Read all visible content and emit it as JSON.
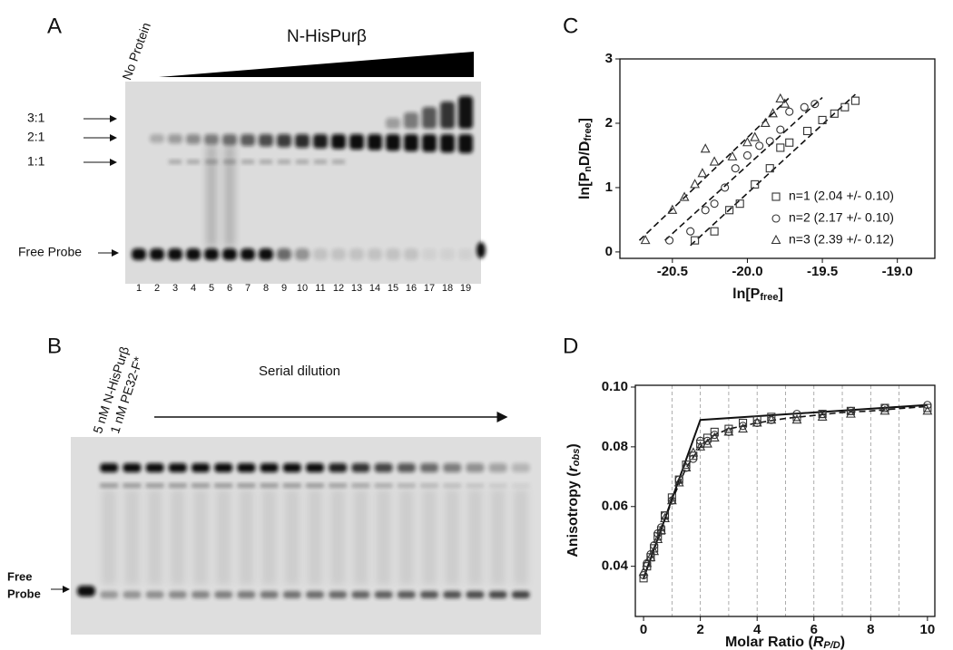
{
  "gels": {
    "A": {
      "panel": "A",
      "column_label": "No Protein",
      "title": "N-HisPurβ",
      "band_labels": [
        "3:1",
        "2:1",
        "1:1",
        "Free Probe"
      ],
      "lanes": [
        "1",
        "2",
        "3",
        "4",
        "5",
        "6",
        "7",
        "8",
        "9",
        "10",
        "11",
        "12",
        "13",
        "14",
        "15",
        "16",
        "17",
        "18",
        "19"
      ]
    },
    "B": {
      "panel": "B",
      "lane_labels": [
        "5 nM N-HisPurβ",
        "1 nM PE32-F*"
      ],
      "title": "Serial dilution",
      "band_label": [
        "Free",
        "Probe"
      ]
    }
  },
  "chart_data": [
    {
      "type": "scatter",
      "panel": "C",
      "x_label": [
        {
          "text": "ln[P"
        },
        {
          "text": "free",
          "style": "sub"
        },
        {
          "text": "]"
        }
      ],
      "y_label": [
        {
          "text": "ln[P"
        },
        {
          "text": "n",
          "style": "sub"
        },
        {
          "text": "D/D"
        },
        {
          "text": "free",
          "style": "sub"
        },
        {
          "text": "]"
        }
      ],
      "xlim": [
        -20.85,
        -18.75
      ],
      "ylim": [
        -0.1,
        3
      ],
      "xticks": [
        -20.5,
        {
          "value": -20,
          "label": "-20.0"
        },
        -19.5,
        {
          "value": -19,
          "label": "-19.0"
        }
      ],
      "yticks": [
        0,
        1,
        2,
        3
      ],
      "legend": "lower right",
      "series": [
        {
          "name": "n=1 (2.04 +/- 0.10)",
          "marker": "square",
          "color": "#333333",
          "x": [
            -20.35,
            -20.22,
            -20.12,
            -20.05,
            -19.95,
            -19.85,
            -19.78,
            -19.72,
            -19.6,
            -19.5,
            -19.42,
            -19.35,
            -19.28
          ],
          "values": [
            0.18,
            0.32,
            0.65,
            0.75,
            1.05,
            1.3,
            1.62,
            1.7,
            1.88,
            2.05,
            2.15,
            2.25,
            2.35
          ]
        },
        {
          "name": "n=2 (2.17 +/- 0.10)",
          "marker": "circle",
          "color": "#333333",
          "x": [
            -20.52,
            -20.38,
            -20.28,
            -20.22,
            -20.15,
            -20.08,
            -20.0,
            -19.92,
            -19.85,
            -19.78,
            -19.72,
            -19.62,
            -19.55
          ],
          "values": [
            0.18,
            0.32,
            0.65,
            0.75,
            1.0,
            1.3,
            1.5,
            1.65,
            1.72,
            1.9,
            2.18,
            2.25,
            2.3
          ]
        },
        {
          "name": "n=3 (2.39 +/- 0.12)",
          "marker": "triangle",
          "color": "#333333",
          "x": [
            -20.68,
            -20.5,
            -20.42,
            -20.35,
            -20.3,
            -20.28,
            -20.22,
            -20.1,
            -20.0,
            -19.95,
            -19.88,
            -19.83,
            -19.75,
            -19.78
          ],
          "values": [
            0.18,
            0.65,
            0.85,
            1.05,
            1.22,
            1.6,
            1.4,
            1.48,
            1.7,
            1.78,
            2.0,
            2.15,
            2.3,
            2.38
          ]
        }
      ],
      "fits": [
        {
          "style": "dashed",
          "x": [
            -20.38,
            -19.28
          ],
          "y": [
            0.1,
            2.45
          ]
        },
        {
          "style": "dashed",
          "x": [
            -20.55,
            -19.5
          ],
          "y": [
            0.18,
            2.4
          ]
        },
        {
          "style": "dashed",
          "x": [
            -20.72,
            -19.72
          ],
          "y": [
            0.18,
            2.4
          ]
        }
      ]
    },
    {
      "type": "scatter",
      "panel": "D",
      "x_label": [
        {
          "text": "Molar Ratio ("
        },
        {
          "text": "R",
          "style": "italic"
        },
        {
          "text": "P/D",
          "style": "italic-sub"
        },
        {
          "text": ")"
        }
      ],
      "y_label": [
        {
          "text": "Anisotropy ("
        },
        {
          "text": "r",
          "style": "italic"
        },
        {
          "text": "obs",
          "style": "italic-sub"
        },
        {
          "text": ")"
        }
      ],
      "xlim": [
        -0.29,
        10.26
      ],
      "ylim": [
        0.0232,
        0.1006
      ],
      "xticks": [
        0,
        2,
        4,
        6,
        8,
        10
      ],
      "yticks": [
        0.04,
        0.06,
        0.08,
        {
          "value": 0.1,
          "label": "0.10"
        }
      ],
      "vgrid": [
        1,
        2,
        3,
        4,
        5,
        6,
        7,
        8,
        9
      ],
      "x": [
        0,
        0.12,
        0.25,
        0.37,
        0.5,
        0.62,
        0.75,
        1,
        1.25,
        1.5,
        1.75,
        2,
        2.25,
        2.5,
        3,
        3.5,
        4,
        4.5,
        5.4,
        6.3,
        7.3,
        8.5,
        10
      ],
      "series": [
        {
          "marker": "square",
          "color": "#333333",
          "values": [
            0.036,
            0.04,
            0.043,
            0.046,
            0.05,
            0.052,
            0.057,
            0.063,
            0.069,
            0.074,
            0.077,
            0.081,
            0.083,
            0.085,
            0.086,
            0.088,
            0.089,
            0.09,
            0.09,
            0.091,
            0.092,
            0.093,
            0.093
          ]
        },
        {
          "marker": "circle",
          "color": "#333333",
          "values": [
            0.037,
            0.041,
            0.044,
            0.047,
            0.051,
            0.053,
            0.057,
            0.062,
            0.069,
            0.073,
            0.076,
            0.082,
            0.082,
            0.084,
            0.085,
            0.087,
            0.088,
            0.089,
            0.091,
            0.091,
            0.092,
            0.093,
            0.094
          ]
        },
        {
          "marker": "triangle",
          "color": "#333333",
          "values": [
            0.038,
            0.041,
            0.043,
            0.045,
            0.049,
            0.052,
            0.056,
            0.062,
            0.068,
            0.073,
            0.078,
            0.08,
            0.081,
            0.083,
            0.085,
            0.086,
            0.088,
            0.089,
            0.089,
            0.09,
            0.091,
            0.092,
            0.092
          ]
        }
      ],
      "fits": [
        {
          "style": "solid",
          "x": [
            0,
            2,
            10
          ],
          "y": [
            0.036,
            0.089,
            0.094
          ]
        },
        {
          "style": "dashed",
          "x": [
            0,
            0.5,
            1,
            1.5,
            2,
            2.5,
            3,
            4,
            5,
            6,
            7,
            8,
            9,
            10
          ],
          "y": [
            0.036,
            0.049,
            0.062,
            0.073,
            0.08,
            0.084,
            0.086,
            0.088,
            0.0895,
            0.0905,
            0.0915,
            0.092,
            0.0928,
            0.0935
          ]
        }
      ]
    }
  ]
}
